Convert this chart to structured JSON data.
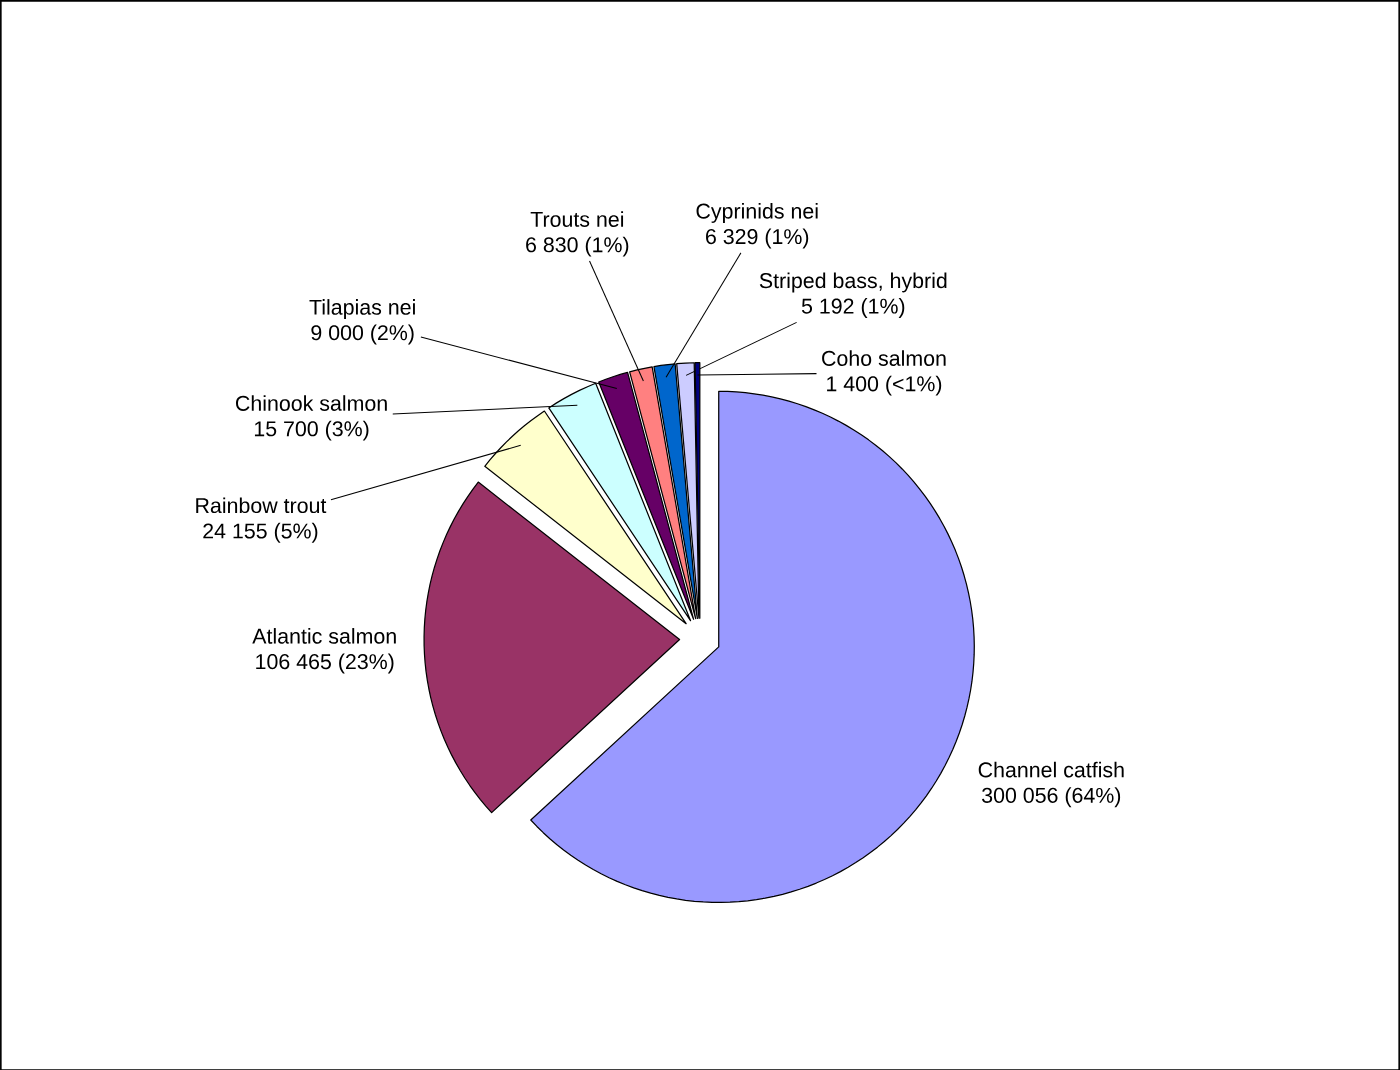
{
  "chart_data": {
    "type": "pie",
    "categories": [
      "Channel catfish",
      "Atlantic salmon",
      "Rainbow trout",
      "Chinook salmon",
      "Tilapias nei",
      "Trouts nei",
      "Cyprinids nei",
      "Striped bass, hybrid",
      "Coho salmon"
    ],
    "values": [
      300056,
      106465,
      24155,
      15700,
      9000,
      6830,
      6329,
      5192,
      1400
    ],
    "value_labels": [
      "300 056 (64%)",
      "106 465 (23%)",
      "24 155 (5%)",
      "15 700 (3%)",
      "9 000 (2%)",
      "6 830 (1%)",
      "6 329 (1%)",
      "5 192 (1%)",
      "1 400 (<1%)"
    ],
    "colors": [
      "#9999ff",
      "#993366",
      "#ffffcc",
      "#ccffff",
      "#660066",
      "#ff8080",
      "#0066cc",
      "#ccccff",
      "#000080"
    ]
  }
}
